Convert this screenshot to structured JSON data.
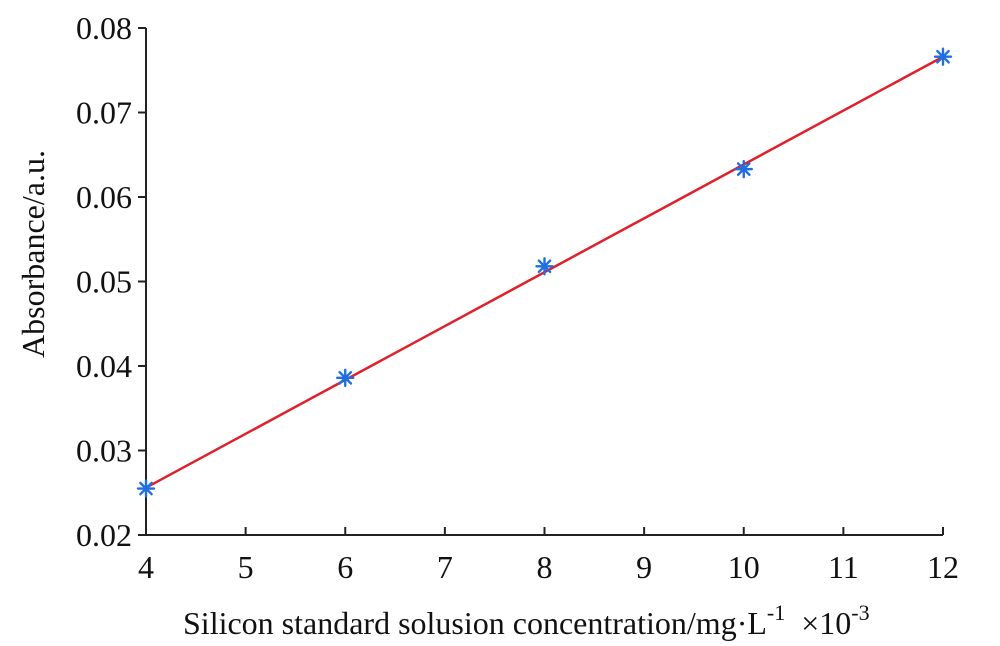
{
  "chart_data": {
    "type": "scatter",
    "title": "",
    "xlabel": "Silicon standard solusion concentration/mg·L",
    "xlabel_sup": "-1",
    "xlabel_multiplier": "×10",
    "xlabel_multiplier_sup": "-3",
    "ylabel": "Absorbance/a.u.",
    "xlim": [
      4,
      12
    ],
    "ylim": [
      0.02,
      0.08
    ],
    "xticks": [
      4,
      5,
      6,
      7,
      8,
      9,
      10,
      11,
      12
    ],
    "yticks": [
      0.02,
      0.03,
      0.04,
      0.05,
      0.06,
      0.07,
      0.08
    ],
    "xtick_labels": [
      "4",
      "5",
      "6",
      "7",
      "8",
      "9",
      "10",
      "11",
      "12"
    ],
    "ytick_labels": [
      "0.02",
      "0.03",
      "0.04",
      "0.05",
      "0.06",
      "0.07",
      "0.08"
    ],
    "grid": false,
    "series": [
      {
        "kind": "points",
        "marker": "asterisk",
        "color": "#1f6fe0",
        "x": [
          4,
          6,
          8,
          10,
          12
        ],
        "y": [
          0.0255,
          0.0386,
          0.0518,
          0.0633,
          0.0766
        ]
      },
      {
        "kind": "fit-line",
        "color": "#e0202a",
        "x": [
          4,
          12
        ],
        "y": [
          0.0256,
          0.0766
        ]
      }
    ]
  }
}
